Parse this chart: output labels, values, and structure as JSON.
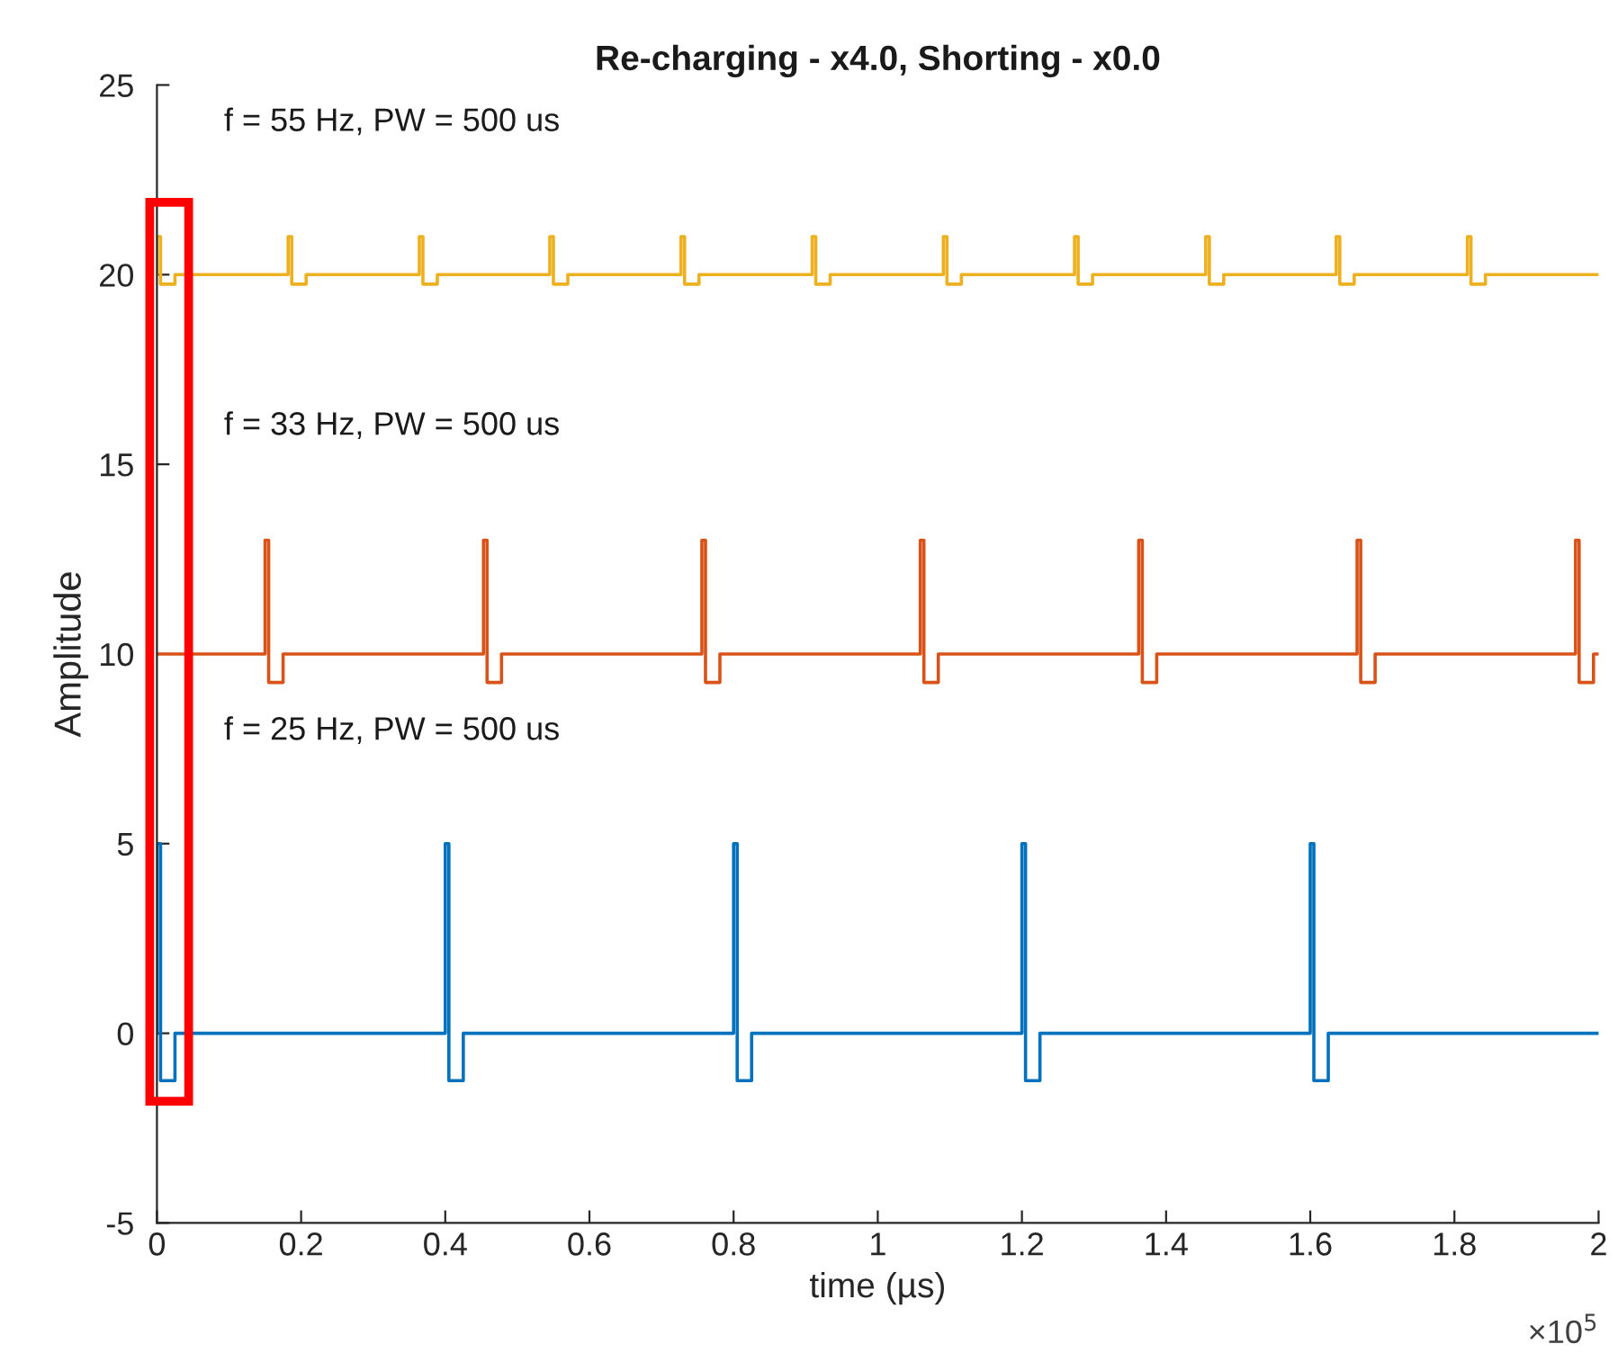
{
  "chart_data": {
    "type": "line",
    "title": "Re-charging - x4.0, Shorting - x0.0",
    "xlabel": "time (µs)",
    "ylabel": "Amplitude",
    "xlim": [
      0,
      2
    ],
    "ylim": [
      -5,
      25
    ],
    "xticks": [
      0,
      0.2,
      0.4,
      0.6,
      0.8,
      1,
      1.2,
      1.4,
      1.6,
      1.8,
      2
    ],
    "yticks": [
      -5,
      0,
      5,
      10,
      15,
      20,
      25
    ],
    "grid": false,
    "legend": false,
    "marker": "none",
    "line_style": "solid",
    "series": [
      {
        "color": "#0072bd",
        "x": [
          0,
          0,
          0.005,
          0.005,
          0.025,
          0.025,
          0.4,
          0.4,
          0.405,
          0.405,
          0.425,
          0.425,
          0.8,
          0.8,
          0.805,
          0.805,
          0.825,
          0.825,
          1.2,
          1.2,
          1.205,
          1.205,
          1.225,
          1.225,
          1.6,
          1.6,
          1.605,
          1.605,
          1.625,
          1.625,
          2
        ],
        "values": [
          0,
          5,
          5,
          -1.25,
          -1.25,
          0,
          0,
          5,
          5,
          -1.25,
          -1.25,
          0,
          0,
          5,
          5,
          -1.25,
          -1.25,
          0,
          0,
          5,
          5,
          -1.25,
          -1.25,
          0,
          0,
          5,
          5,
          -1.25,
          -1.25,
          0,
          0
        ]
      },
      {
        "color": "#d95319",
        "x": [
          0,
          0.15,
          0.15,
          0.155,
          0.155,
          0.175,
          0.175,
          0.453,
          0.453,
          0.458,
          0.458,
          0.478,
          0.478,
          0.756,
          0.756,
          0.761,
          0.761,
          0.781,
          0.781,
          1.059,
          1.059,
          1.064,
          1.064,
          1.084,
          1.084,
          1.362,
          1.362,
          1.367,
          1.367,
          1.387,
          1.387,
          1.665,
          1.665,
          1.67,
          1.67,
          1.69,
          1.69,
          1.968,
          1.968,
          1.973,
          1.973,
          1.993,
          1.993,
          2
        ],
        "values": [
          10,
          10,
          13,
          13,
          9.25,
          9.25,
          10,
          10,
          13,
          13,
          9.25,
          9.25,
          10,
          10,
          13,
          13,
          9.25,
          9.25,
          10,
          10,
          13,
          13,
          9.25,
          9.25,
          10,
          10,
          13,
          13,
          9.25,
          9.25,
          10,
          10,
          13,
          13,
          9.25,
          9.25,
          10,
          10,
          13,
          13,
          9.25,
          9.25,
          10,
          10
        ]
      },
      {
        "color": "#edb120",
        "x": [
          0,
          0,
          0.005,
          0.005,
          0.025,
          0.025,
          0.182,
          0.182,
          0.187,
          0.187,
          0.207,
          0.207,
          0.364,
          0.364,
          0.369,
          0.369,
          0.389,
          0.389,
          0.545,
          0.545,
          0.55,
          0.55,
          0.57,
          0.57,
          0.727,
          0.727,
          0.732,
          0.732,
          0.752,
          0.752,
          0.909,
          0.909,
          0.914,
          0.914,
          0.934,
          0.934,
          1.091,
          1.091,
          1.096,
          1.096,
          1.116,
          1.116,
          1.273,
          1.273,
          1.278,
          1.278,
          1.298,
          1.298,
          1.455,
          1.455,
          1.46,
          1.46,
          1.48,
          1.48,
          1.636,
          1.636,
          1.641,
          1.641,
          1.661,
          1.661,
          1.818,
          1.818,
          1.823,
          1.823,
          1.843,
          1.843,
          2
        ],
        "values": [
          20,
          21,
          21,
          19.75,
          19.75,
          20,
          20,
          21,
          21,
          19.75,
          19.75,
          20,
          20,
          21,
          21,
          19.75,
          19.75,
          20,
          20,
          21,
          21,
          19.75,
          19.75,
          20,
          20,
          21,
          21,
          19.75,
          19.75,
          20,
          20,
          21,
          21,
          19.75,
          19.75,
          20,
          20,
          21,
          21,
          19.75,
          19.75,
          20,
          20,
          21,
          21,
          19.75,
          19.75,
          20,
          20,
          21,
          21,
          19.75,
          19.75,
          20,
          20,
          21,
          21,
          19.75,
          19.75,
          20,
          20,
          21,
          21,
          19.75,
          19.75,
          20,
          20
        ]
      }
    ],
    "annotations": [
      "f = 55 Hz, PW = 500 us",
      "f = 33 Hz, PW = 500 us",
      "f = 25 Hz, PW = 500 us",
      "×10$^{5}$"
    ]
  }
}
